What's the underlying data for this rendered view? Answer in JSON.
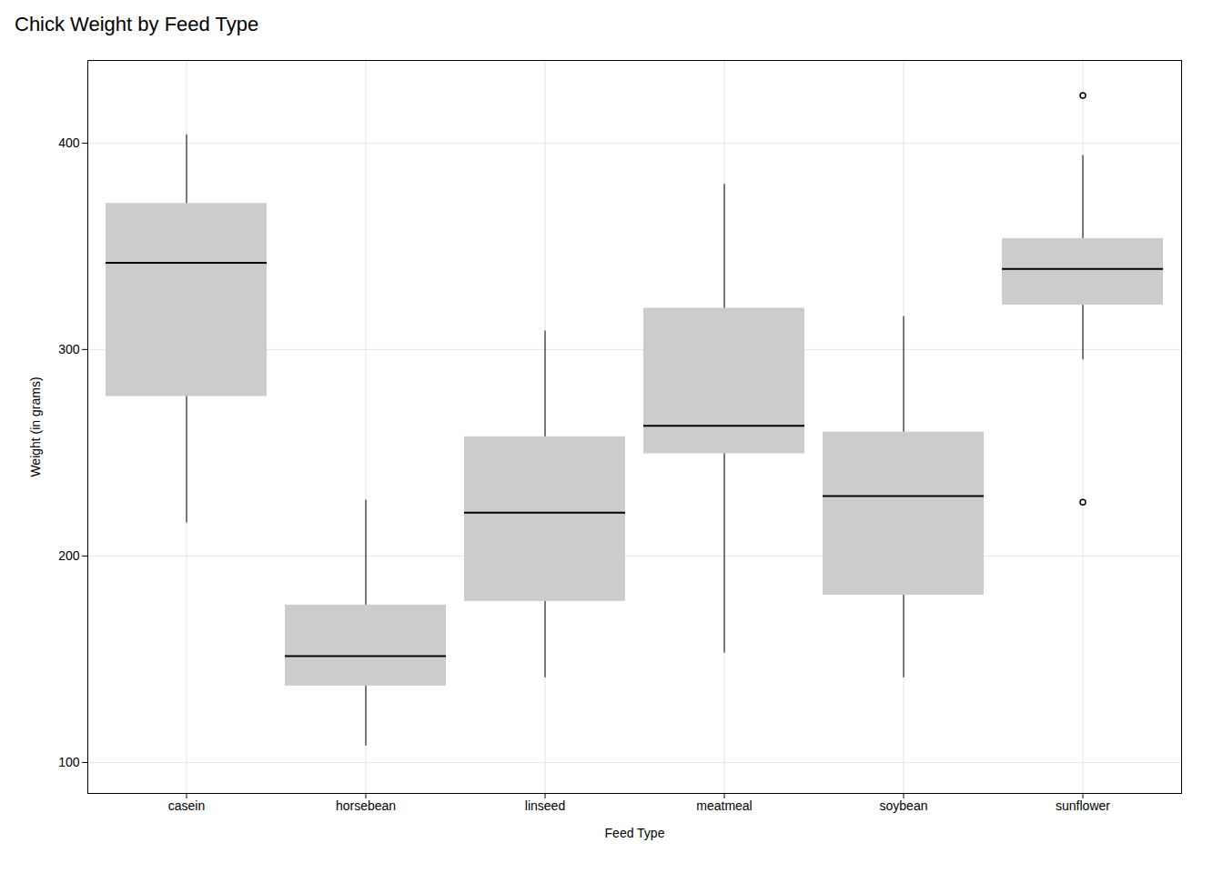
{
  "chart_data": {
    "type": "box",
    "title": "Chick Weight by Feed Type",
    "xlabel": "Feed Type",
    "ylabel": "Weight (in grams)",
    "categories": [
      "casein",
      "horsebean",
      "linseed",
      "meatmeal",
      "soybean",
      "sunflower"
    ],
    "values": [
      [
        368,
        390,
        379,
        260,
        404,
        318,
        352,
        359,
        216,
        222,
        283,
        332
      ],
      [
        179,
        160,
        136,
        227,
        217,
        168,
        108,
        124,
        143,
        140
      ],
      [
        309,
        229,
        181,
        141,
        260,
        203,
        148,
        169,
        213,
        257,
        244,
        271
      ],
      [
        325,
        257,
        303,
        315,
        380,
        153,
        263,
        242,
        206,
        344,
        258
      ],
      [
        169,
        213,
        257,
        244,
        271,
        309,
        229,
        181,
        141,
        260,
        203,
        148,
        193,
        271,
        316,
        232,
        158
      ],
      [
        423,
        340,
        392,
        339,
        341,
        226,
        320,
        295,
        334,
        322,
        394,
        339
      ]
    ],
    "ylim": [
      85,
      440
    ],
    "yticks": [
      100,
      200,
      300,
      400
    ],
    "grid": true
  }
}
